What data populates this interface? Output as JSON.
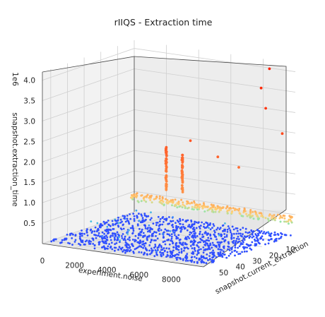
{
  "chart_data": {
    "type": "scatter",
    "title": "rIIQS - Extraction time",
    "projection": "3d",
    "xlabel": "experiment.noise",
    "ylabel": "snapshot.current_extraction",
    "zlabel": "snapshot.extraction_time",
    "z_scale_label": "1e6",
    "xlim": [
      0,
      10000
    ],
    "ylim": [
      0,
      55
    ],
    "zlim": [
      0,
      4200000
    ],
    "x_ticks": [
      "0",
      "2000",
      "4000",
      "6000",
      "8000"
    ],
    "y_ticks": [
      "10",
      "20",
      "30",
      "40",
      "50"
    ],
    "z_ticks": [
      "0.5",
      "1.0",
      "1.5",
      "2.0",
      "2.5",
      "3.0",
      "3.5",
      "4.0"
    ],
    "grid": true,
    "colormap": "rainbow (blue = low, red = high extraction_time)",
    "colors": {
      "low": "#2f4bff",
      "mid": "#52f0c8",
      "high_mid": "#ff9a4a",
      "high": "#ff1a00"
    },
    "series": [
      {
        "description": "bulk of runs: extraction_time near zero across all noise and current_extraction values",
        "x_range": [
          0,
          10000
        ],
        "y_range": [
          1,
          52
        ],
        "z_approx": 20000
      },
      {
        "description": "runs at low current_extraction (about 1–3) across noise, elevated times",
        "x_range": [
          0,
          10000
        ],
        "y_range": [
          1,
          3
        ],
        "z_range": [
          300000,
          500000
        ]
      },
      {
        "description": "two vertical clusters at low current_extraction",
        "points": [
          {
            "x": 2500,
            "y": 5,
            "z_range": [
              700000,
              1800000
            ]
          },
          {
            "x": 3500,
            "y": 5,
            "z_range": [
              700000,
              1700000
            ]
          }
        ]
      },
      {
        "description": "isolated high outliers",
        "points": [
          {
            "x": 8500,
            "y": 1,
            "z": 4000000
          },
          {
            "x": 8500,
            "y": 6,
            "z": 3600000
          },
          {
            "x": 9200,
            "y": 10,
            "z": 3200000
          },
          {
            "x": 9500,
            "y": 3,
            "z": 2500000
          },
          {
            "x": 3800,
            "y": 3,
            "z": 2000000
          },
          {
            "x": 5500,
            "y": 3,
            "z": 1700000
          },
          {
            "x": 6700,
            "y": 2,
            "z": 1500000
          }
        ]
      }
    ]
  }
}
